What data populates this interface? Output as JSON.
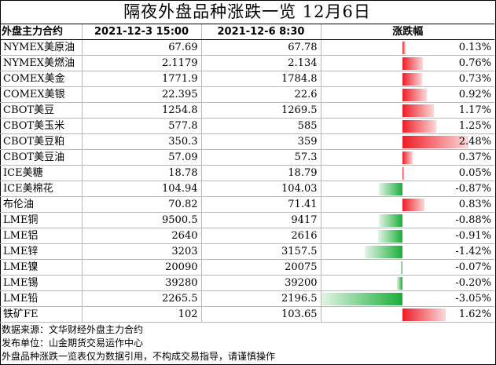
{
  "title": "隔夜外盘品种涨跌一览  12月6日",
  "headers": {
    "contract": "外盘主力合约",
    "date1": "2021-12-3 15:00",
    "date2": "2021-12-6 8:30",
    "change": "涨跌幅"
  },
  "rows": [
    {
      "name": "NYMEX美原油",
      "v1": "67.69",
      "v2": "67.78",
      "pct": "0.13%",
      "value": 0.13
    },
    {
      "name": "NYMEX美燃油",
      "v1": "2.1179",
      "v2": "2.134",
      "pct": "0.76%",
      "value": 0.76
    },
    {
      "name": "COMEX美金",
      "v1": "1771.9",
      "v2": "1784.8",
      "pct": "0.73%",
      "value": 0.73
    },
    {
      "name": "COMEX美银",
      "v1": "22.395",
      "v2": "22.6",
      "pct": "0.92%",
      "value": 0.92
    },
    {
      "name": "CBOT美豆",
      "v1": "1254.8",
      "v2": "1269.5",
      "pct": "1.17%",
      "value": 1.17
    },
    {
      "name": "CBOT美玉米",
      "v1": "577.8",
      "v2": "585",
      "pct": "1.25%",
      "value": 1.25
    },
    {
      "name": "CBOT美豆粕",
      "v1": "350.3",
      "v2": "359",
      "pct": "2.48%",
      "value": 2.48
    },
    {
      "name": "CBOT美豆油",
      "v1": "57.09",
      "v2": "57.3",
      "pct": "0.37%",
      "value": 0.37
    },
    {
      "name": "ICE美糖",
      "v1": "18.78",
      "v2": "18.79",
      "pct": "0.05%",
      "value": 0.05
    },
    {
      "name": "ICE美棉花",
      "v1": "104.94",
      "v2": "104.03",
      "pct": "-0.87%",
      "value": -0.87
    },
    {
      "name": "布伦油",
      "v1": "70.82",
      "v2": "71.41",
      "pct": "0.83%",
      "value": 0.83
    },
    {
      "name": "LME铜",
      "v1": "9500.5",
      "v2": "9417",
      "pct": "-0.88%",
      "value": -0.88
    },
    {
      "name": "LME铝",
      "v1": "2640",
      "v2": "2616",
      "pct": "-0.91%",
      "value": -0.91
    },
    {
      "name": "LME锌",
      "v1": "3203",
      "v2": "3157.5",
      "pct": "-1.42%",
      "value": -1.42
    },
    {
      "name": "LME镍",
      "v1": "20090",
      "v2": "20075",
      "pct": "-0.07%",
      "value": -0.07
    },
    {
      "name": "LME锡",
      "v1": "39280",
      "v2": "39200",
      "pct": "-0.20%",
      "value": -0.2
    },
    {
      "name": "LME铅",
      "v1": "2265.5",
      "v2": "2196.5",
      "pct": "-3.05%",
      "value": -3.05
    },
    {
      "name": "铁矿FE",
      "v1": "102",
      "v2": "103.65",
      "pct": "1.62%",
      "value": 1.62
    }
  ],
  "footer": {
    "source": "数据来源：文华财经外盘主力合约",
    "publisher": "发布单位：山金期货交易运作中心",
    "disclaimer": "外盘品种涨跌一览表仅为数据引用，不构成交易指导，请谨慎操作"
  },
  "colors": {
    "up": "#ee1c25",
    "down": "#1aae3a"
  }
}
